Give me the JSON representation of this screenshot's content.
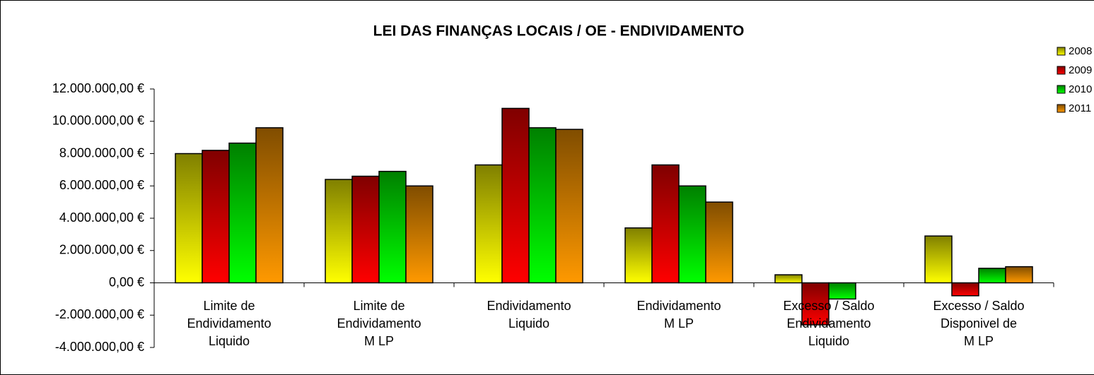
{
  "chart_data": {
    "type": "bar",
    "title": "LEI DAS FINANÇAS LOCAIS / OE - ENDIVIDAMENTO",
    "categories": [
      "Limite de\nEndividamento\nLiquido",
      "Limite de\nEndividamento\nM LP",
      "Endividamento\nLiquido",
      "Endividamento\nM LP",
      "Excesso / Saldo\nEndividamento\nLiquido",
      "Excesso / Saldo\nDisponivel de\nM LP"
    ],
    "series": [
      {
        "name": "2008",
        "color": "#ffff00",
        "values": [
          8000000,
          6400000,
          7300000,
          3400000,
          500000,
          2900000
        ]
      },
      {
        "name": "2009",
        "color": "#ff0000",
        "values": [
          8200000,
          6600000,
          10800000,
          7300000,
          -2600000,
          -800000
        ]
      },
      {
        "name": "2010",
        "color": "#00ff00",
        "values": [
          8650000,
          6900000,
          9600000,
          6000000,
          -1000000,
          900000
        ]
      },
      {
        "name": "2011",
        "color": "#ff9900",
        "values": [
          9600000,
          6000000,
          9500000,
          5000000,
          null,
          1000000
        ]
      }
    ],
    "ylim": [
      -4000000,
      12000000
    ],
    "yticks": [
      {
        "value": -4000000,
        "label": "-4.000.000,00 €"
      },
      {
        "value": -2000000,
        "label": "-2.000.000,00 €"
      },
      {
        "value": 0,
        "label": "0,00 €"
      },
      {
        "value": 2000000,
        "label": "2.000.000,00 €"
      },
      {
        "value": 4000000,
        "label": "4.000.000,00 €"
      },
      {
        "value": 6000000,
        "label": "6.000.000,00 €"
      },
      {
        "value": 8000000,
        "label": "8.000.000,00 €"
      },
      {
        "value": 10000000,
        "label": "10.000.000,00 €"
      },
      {
        "value": 12000000,
        "label": "12.000.000,00 €"
      }
    ],
    "legend": "right"
  }
}
